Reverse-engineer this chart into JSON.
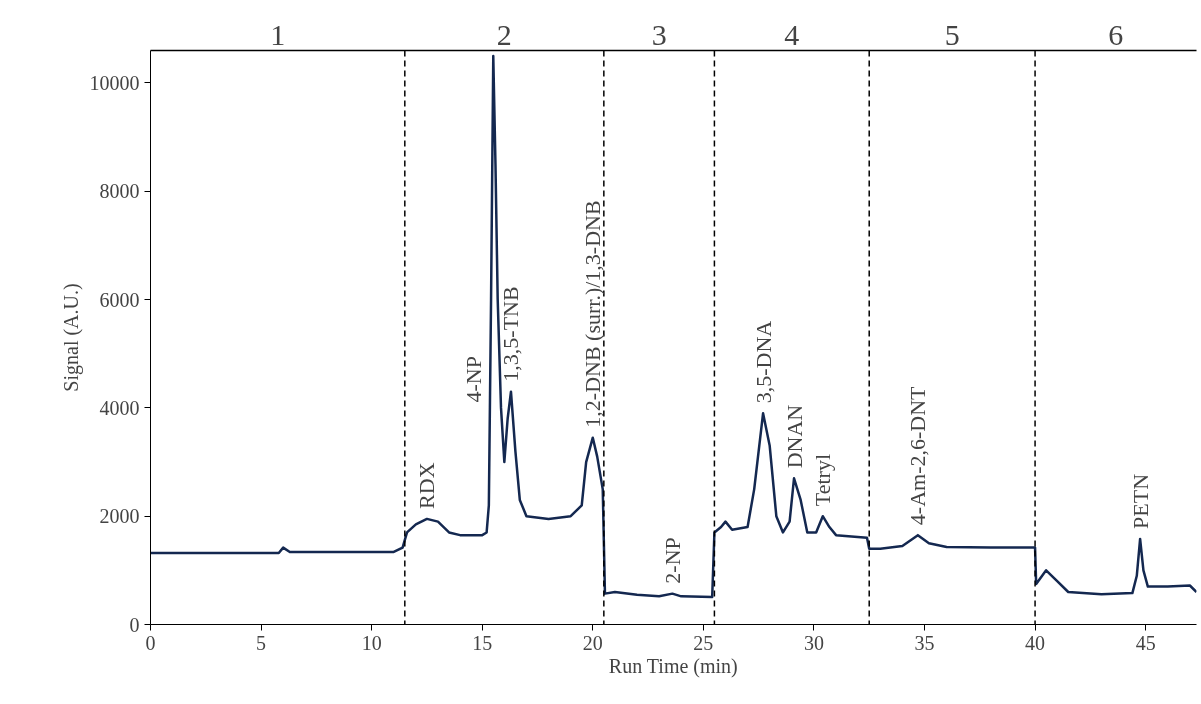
{
  "chart_data": {
    "type": "line",
    "xlabel": "Run Time (min)",
    "ylabel": "Signal (A.U.)",
    "xlim": [
      0,
      47.3
    ],
    "ylim": [
      0,
      10600
    ],
    "xticks": [
      0,
      5,
      10,
      15,
      20,
      25,
      30,
      35,
      40,
      45
    ],
    "yticks": [
      0,
      2000,
      4000,
      6000,
      8000,
      10000
    ],
    "grid": false,
    "marker": "none",
    "line_style": "solid",
    "series": [
      {
        "color": "#142850",
        "x": [
          0,
          3,
          5.8,
          6.0,
          6.3,
          8,
          11,
          11.4,
          11.6,
          12,
          12.5,
          13,
          13.5,
          14,
          15,
          15.2,
          15.3,
          15.35,
          15.4,
          15.5,
          15.6,
          15.7,
          15.85,
          16.0,
          16.15,
          16.3,
          16.5,
          16.7,
          17,
          18,
          19,
          19.5,
          19.7,
          20.0,
          20.2,
          20.45,
          20.55,
          21,
          22,
          23,
          23.6,
          24,
          25.4,
          25.5,
          25.8,
          26.0,
          26.3,
          27,
          27.3,
          27.7,
          28.0,
          28.3,
          28.6,
          28.9,
          29.1,
          29.4,
          29.7,
          30.1,
          30.4,
          30.7,
          31,
          32.4,
          32.5,
          33,
          34,
          34.7,
          35.2,
          36,
          38,
          40.0,
          40.05,
          40.5,
          41,
          41.5,
          43,
          44.4,
          44.6,
          44.75,
          44.9,
          45.1,
          46,
          47,
          47.3
        ],
        "values": [
          1320,
          1320,
          1320,
          1420,
          1340,
          1340,
          1340,
          1420,
          1700,
          1850,
          1950,
          1900,
          1700,
          1650,
          1650,
          1700,
          2200,
          4100,
          6000,
          10500,
          8500,
          6000,
          4000,
          3000,
          3800,
          4300,
          3200,
          2300,
          2000,
          1950,
          2000,
          2200,
          3000,
          3450,
          3100,
          2500,
          570,
          600,
          550,
          520,
          570,
          520,
          510,
          1700,
          1800,
          1900,
          1750,
          1800,
          2500,
          3900,
          3300,
          2000,
          1700,
          1900,
          2700,
          2300,
          1700,
          1700,
          2000,
          1800,
          1650,
          1600,
          1400,
          1400,
          1450,
          1650,
          1500,
          1430,
          1420,
          1420,
          750,
          1000,
          800,
          600,
          560,
          580,
          900,
          1580,
          1000,
          700,
          700,
          720,
          600
        ]
      }
    ],
    "ref_lines": [
      {
        "axis": "x",
        "value": 11.5,
        "line_style": "dashed",
        "color": "#000000"
      },
      {
        "axis": "x",
        "value": 20.5,
        "line_style": "dashed",
        "color": "#000000"
      },
      {
        "axis": "x",
        "value": 25.5,
        "line_style": "dashed",
        "color": "#000000"
      },
      {
        "axis": "x",
        "value": 32.5,
        "line_style": "dashed",
        "color": "#000000"
      },
      {
        "axis": "x",
        "value": 40.0,
        "line_style": "dashed",
        "color": "#000000"
      }
    ],
    "annotations": [
      "1",
      "2",
      "3",
      "4",
      "5",
      "6",
      {
        "text": "RDX",
        "x": 12.5,
        "y": 1950
      },
      {
        "text": "4-NP",
        "x": 15.35,
        "y": 4100
      },
      {
        "text": "1,3,5-TNB",
        "x": 16.3,
        "y": 4300
      },
      {
        "text": "1,2-DNB (surr.)/1,3-DNB",
        "x": 20.0,
        "y": 3450
      },
      {
        "text": "2-NP",
        "x": 23.6,
        "y": 570
      },
      {
        "text": "3,5-DNA",
        "x": 27.7,
        "y": 3900
      },
      {
        "text": "DNAN",
        "x": 29.1,
        "y": 2700
      },
      {
        "text": "Tetryl",
        "x": 30.4,
        "y": 2000
      },
      {
        "text": "4-Am-2,6-DNT",
        "x": 34.7,
        "y": 1650
      },
      {
        "text": "PETN",
        "x": 44.75,
        "y": 1580
      }
    ]
  }
}
